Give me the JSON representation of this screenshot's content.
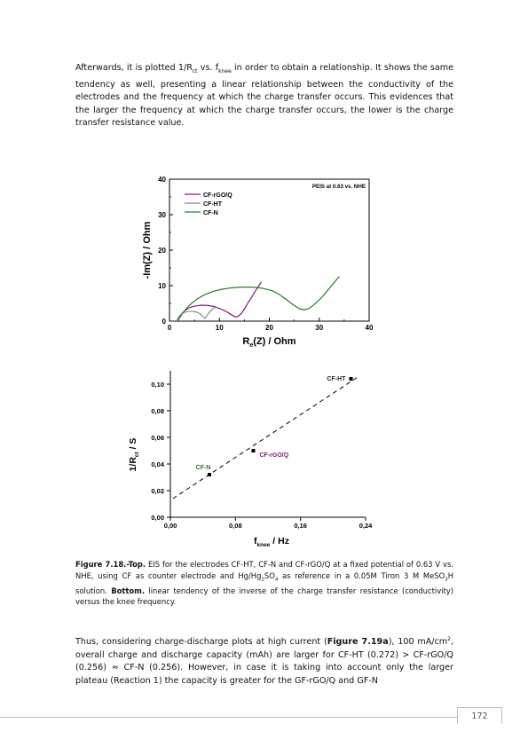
{
  "paragraph1": {
    "a": "Afterwards, it is plotted 1/R",
    "a_sub": "ct",
    "b": " vs. f",
    "b_sub": "knee",
    "c": " in order to obtain a relationship. It shows the same tendency as well, presenting a linear relationship between the conductivity of the electrodes and the frequency at which the charge transfer occurs. This evidences that the larger the frequency at which the charge transfer occurs, the lower is the charge transfer resistance value."
  },
  "caption": {
    "label": "Figure 7.18.-Top.",
    "t1": " EIS for the electrodes CF-HT, CF-N and CF-rGO/Q at a fixed potential of 0.63 V vs. NHE, using CF as counter electrode and Hg/Hg",
    "t1_sub1": "2",
    "t1_mid": "SO",
    "t1_sub2": "4",
    "t2": " as reference in a 0.05M Tiron 3 M MeSO",
    "t2_sub": "3",
    "t3": "H solution. ",
    "bottom_label": "Bottom.",
    "t4": " linear tendency of the inverse of the charge transfer resistance (conductivity) versus the knee frequency."
  },
  "paragraph2": {
    "a": "Thus, considering charge-discharge plots at high current (",
    "ref": "Figure 7.19a",
    "b": "), 100 mA/cm",
    "b_sup": "2",
    "c": ", overall charge and discharge capacity (mAh) are larger for CF-HT (0.272) > CF-rGO/Q (0.256) ≈ CF-N (0.256). However, in case it is taking into account only the larger plateau (Reaction 1) the capacity is greater for the GF-rGO/Q and GF-N"
  },
  "page_number": "172",
  "chart_data": [
    {
      "type": "line",
      "annotation": "PEIS at 0.63 vs. NHE",
      "xlabel_main": "R",
      "xlabel_sub": "e",
      "xlabel_rest": "(Z) / Ohm",
      "ylabel": "-Im(Z) / Ohm",
      "xlim": [
        0,
        40
      ],
      "ylim": [
        0,
        40
      ],
      "xticks": [
        "0",
        "10",
        "20",
        "30",
        "40"
      ],
      "yticks": [
        "0",
        "10",
        "20",
        "30",
        "40"
      ],
      "legend_placement": "top-left",
      "series": [
        {
          "name": "CF-rGO/Q",
          "color": "#7a1a7a",
          "x": [
            1.6,
            2.2,
            3.0,
            4.0,
            5.2,
            6.5,
            7.8,
            9.0,
            10.2,
            11.4,
            12.4,
            13.2,
            13.8,
            14.4,
            15.0,
            15.6,
            16.3,
            17.0,
            17.7,
            18.4
          ],
          "y": [
            0.0,
            1.6,
            2.9,
            3.8,
            4.3,
            4.5,
            4.4,
            4.1,
            3.5,
            2.7,
            1.8,
            1.2,
            1.4,
            2.2,
            3.4,
            4.9,
            6.4,
            8.0,
            9.6,
            11.0
          ]
        },
        {
          "name": "CF-HT",
          "color": "#888888",
          "x": [
            1.4,
            1.9,
            2.6,
            3.5,
            4.5,
            5.4,
            6.2,
            6.8,
            7.1,
            7.5,
            8.0,
            8.6,
            9.2
          ],
          "y": [
            0.0,
            1.3,
            2.3,
            2.7,
            2.8,
            2.6,
            2.0,
            1.1,
            0.8,
            1.5,
            2.5,
            3.4,
            4.0
          ]
        },
        {
          "name": "CF-N",
          "color": "#2a7a2a",
          "x": [
            1.6,
            2.5,
            3.5,
            4.5,
            5.5,
            6.8,
            8.5,
            10.5,
            12.5,
            14.5,
            16.5,
            18.5,
            20.5,
            22.0,
            23.5,
            25.0,
            26.0,
            27.0,
            28.0,
            29.0,
            30.0,
            31.0,
            32.0,
            33.0,
            34.0
          ],
          "y": [
            0.0,
            2.0,
            3.8,
            5.1,
            6.2,
            7.3,
            8.3,
            9.0,
            9.4,
            9.6,
            9.6,
            9.3,
            8.6,
            7.5,
            6.0,
            4.4,
            3.5,
            3.2,
            3.6,
            4.7,
            6.0,
            7.5,
            9.2,
            10.9,
            12.6
          ]
        }
      ]
    },
    {
      "type": "scatter",
      "xlabel_main": "f",
      "xlabel_sub": "knee",
      "xlabel_rest": " / Hz",
      "ylabel_main": "1/R",
      "ylabel_sub": "ct",
      "ylabel_rest": " / S",
      "xlim": [
        0,
        0.24
      ],
      "ylim": [
        0,
        0.11
      ],
      "xticks": [
        0.0,
        0.08,
        0.16,
        0.24
      ],
      "xtick_labels": [
        "0,00",
        "0,08",
        "0,16",
        "0,24"
      ],
      "yticks": [
        0.0,
        0.02,
        0.04,
        0.06,
        0.08,
        0.1
      ],
      "ytick_labels": [
        "0,00",
        "0,02",
        "0,04",
        "0,06",
        "0,08",
        "0,10"
      ],
      "points": [
        {
          "name": "CF-N",
          "x": 0.048,
          "y": 0.032,
          "color": "#2a7a2a"
        },
        {
          "name": "CF-rGO/Q",
          "x": 0.102,
          "y": 0.05,
          "color": "#7a1a7a"
        },
        {
          "name": "CF-HT",
          "x": 0.222,
          "y": 0.104,
          "color": "#222222"
        }
      ],
      "fit_line": {
        "x": [
          0.003,
          0.232
        ],
        "y": [
          0.014,
          0.106
        ]
      }
    }
  ]
}
